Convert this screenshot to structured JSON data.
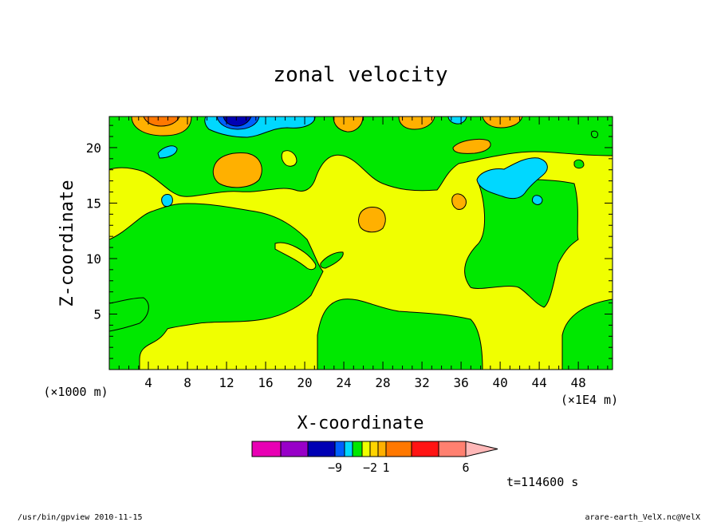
{
  "chart_data": {
    "type": "heatmap",
    "title": "zonal velocity",
    "xlabel": "X-coordinate",
    "ylabel": "Z-coordinate",
    "x_unit": "(×1E4 m)",
    "y_unit": "(×1000 m)",
    "xlim": [
      0,
      51.5
    ],
    "ylim": [
      0,
      22.8
    ],
    "x_ticks": [
      4,
      8,
      12,
      16,
      20,
      24,
      28,
      32,
      36,
      40,
      44,
      48
    ],
    "y_ticks": [
      5,
      10,
      15,
      20
    ],
    "time_label": "t=114600 s",
    "colorbar": {
      "labels": [
        {
          "value": -9,
          "text": "−9",
          "index": 2
        },
        {
          "value": -2,
          "text": "−2",
          "index": 6
        },
        {
          "value": 1,
          "text": "1",
          "index": 8
        },
        {
          "value": 6,
          "text": "6",
          "index": 11
        }
      ],
      "colors": [
        "#e800b4",
        "#9800c8",
        "#0000b4",
        "#0060ff",
        "#00d8ff",
        "#00e800",
        "#f0ff00",
        "#ffd400",
        "#ffb000",
        "#ff7800",
        "#ff1414",
        "#ff8070",
        "#ffb8b8"
      ]
    },
    "colors": {
      "neg_strong": "#0000b4",
      "neg": "#0060ff",
      "neg_weak": "#00d8ff",
      "near_zero": "#00e800",
      "pos_weak": "#f0ff00",
      "pos": "#ffb000",
      "pos_mid": "#ff7800"
    }
  },
  "footer": {
    "left": "/usr/bin/gpview  2010-11-15",
    "right": "arare-earth_VelX.nc@VelX"
  }
}
